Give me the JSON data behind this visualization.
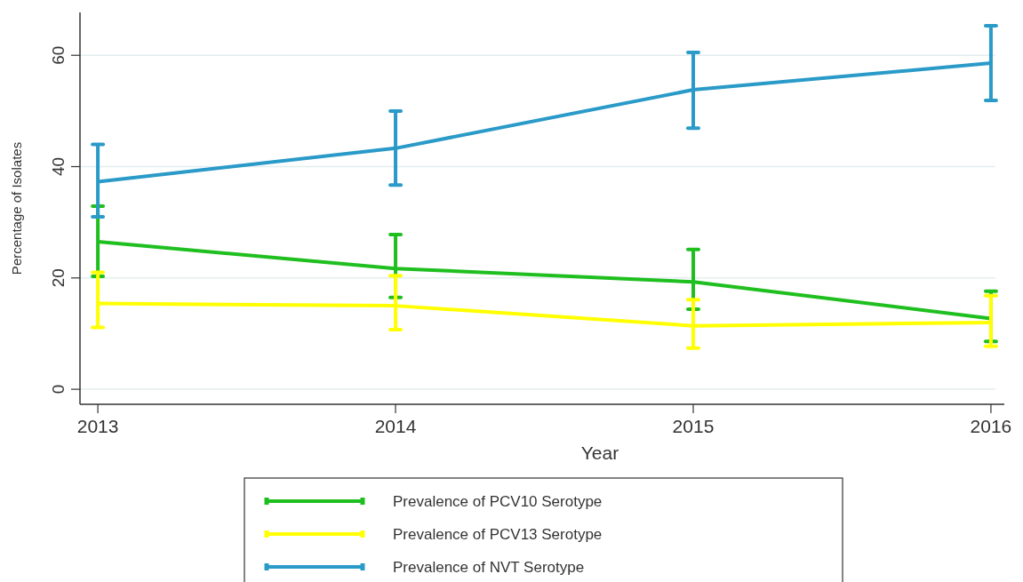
{
  "chart_data": {
    "type": "line",
    "xlabel": "Year",
    "ylabel": "Percentage of Isolates",
    "x": [
      2013,
      2014,
      2015,
      2016
    ],
    "xlim": [
      2012.94,
      2016.045
    ],
    "xticks": [
      2013,
      2014,
      2015,
      2016
    ],
    "ylim": [
      -2.7,
      67.7
    ],
    "yticks": [
      0,
      20,
      40,
      60
    ],
    "grid": "y",
    "legend": "bottom",
    "marker": "none",
    "line_style": "solid",
    "series": [
      {
        "name": "Prevalence of PCV10 Serotype",
        "color": "#1fbf1f",
        "values": [
          26.5,
          21.7,
          19.3,
          12.7
        ],
        "errors": [
          [
            20.3,
            32.9
          ],
          [
            16.5,
            27.8
          ],
          [
            14.4,
            25.1
          ],
          [
            8.6,
            17.6
          ]
        ]
      },
      {
        "name": "Prevalence of PCV13 Serotype",
        "color": "#ffff00",
        "values": [
          15.4,
          15.0,
          11.4,
          12.0
        ],
        "errors": [
          [
            11.1,
            21.0
          ],
          [
            10.7,
            20.4
          ],
          [
            7.4,
            16.1
          ],
          [
            7.7,
            16.8
          ]
        ]
      },
      {
        "name": "Prevalence of NVT Serotype",
        "color": "#2a9ac8",
        "values": [
          37.3,
          43.3,
          53.8,
          58.6
        ],
        "errors": [
          [
            31.0,
            44.0
          ],
          [
            36.7,
            50.0
          ],
          [
            46.9,
            60.5
          ],
          [
            51.9,
            65.3
          ]
        ]
      }
    ]
  }
}
